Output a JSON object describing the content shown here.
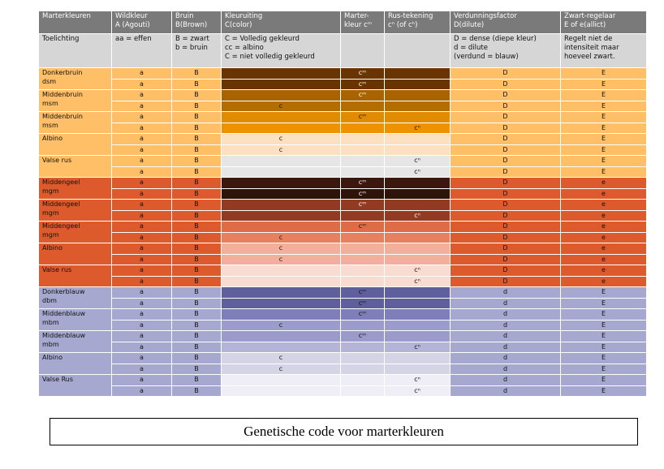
{
  "header": [
    "Marterkleuren",
    "Wildkleur\nA  (Agouti)",
    "Bruin\nB(Brown)",
    "Kleuruiting\nC(color)",
    "Marter-\nkleur cᵐ",
    "Rus-tekening\ncⁿ (of cʰ)",
    "Verdunningsfactor\nD(dilute)",
    "Zwart-regelaar\nE of e(allict)"
  ],
  "explanation": [
    "Toelichting",
    "aa = effen",
    "B = zwart\nb = bruin",
    "C = Volledig gekleurd\ncc = albino\nC = niet volledig gekleurd",
    "",
    "",
    "D = dense (diepe kleur)\nd = dilute\n(verdund = blauw)",
    "Regelt niet de\nintensiteit maar\nhoeveel zwart."
  ],
  "symbols": {
    "a": "a",
    "B": "B",
    "c": "c",
    "cm": "cᵐ",
    "cn": "cⁿ",
    "D": "D",
    "d": "d",
    "E": "E",
    "e": "e"
  },
  "groups": [
    {
      "name": "Donkerbruin\ndsm",
      "row1": [
        "a",
        "B",
        "",
        "cm",
        "",
        "D",
        "E"
      ],
      "row2": [
        "a",
        "B",
        "",
        "cm",
        "",
        "D",
        "E"
      ]
    },
    {
      "name": "Middenbruin\nmsm",
      "row1": [
        "a",
        "B",
        "",
        "cm",
        "",
        "D",
        "E"
      ],
      "row2": [
        "a",
        "B",
        "c",
        "",
        "",
        "D",
        "E"
      ]
    },
    {
      "name": "Middenbruin\nmsm",
      "row1": [
        "a",
        "B",
        "",
        "cm",
        "",
        "D",
        "E"
      ],
      "row2": [
        "a",
        "B",
        "",
        "",
        "cn",
        "D",
        "E"
      ]
    },
    {
      "name": "Albino",
      "row1": [
        "a",
        "B",
        "c",
        "",
        "",
        "D",
        "E"
      ],
      "row2": [
        "a",
        "B",
        "c",
        "",
        "",
        "D",
        "E"
      ]
    },
    {
      "name": "Valse rus",
      "row1": [
        "a",
        "B",
        "",
        "",
        "cn",
        "D",
        "E"
      ],
      "row2": [
        "a",
        "B",
        "",
        "",
        "cn",
        "D",
        "E"
      ]
    },
    {
      "name": "Middengeel\nmgm",
      "row1": [
        "a",
        "B",
        "",
        "cm",
        "",
        "D",
        "e"
      ],
      "row2": [
        "a",
        "B",
        "",
        "cm",
        "",
        "D",
        "e"
      ]
    },
    {
      "name": "Middengeel\nmgm",
      "row1": [
        "a",
        "B",
        "",
        "cm",
        "",
        "D",
        "e"
      ],
      "row2": [
        "a",
        "B",
        "",
        "",
        "cn",
        "D",
        "e"
      ]
    },
    {
      "name": "Middengeel\nmgm",
      "row1": [
        "a",
        "B",
        "",
        "cm",
        "",
        "D",
        "e"
      ],
      "row2": [
        "a",
        "B",
        "c",
        "",
        "",
        "D",
        "e"
      ]
    },
    {
      "name": "Albino",
      "row1": [
        "a",
        "B",
        "c",
        "",
        "",
        "D",
        "e"
      ],
      "row2": [
        "a",
        "B",
        "c",
        "",
        "",
        "D",
        "e"
      ]
    },
    {
      "name": "Valse rus",
      "row1": [
        "a",
        "B",
        "",
        "",
        "cn",
        "D",
        "e"
      ],
      "row2": [
        "a",
        "B",
        "",
        "",
        "cn",
        "D",
        "e"
      ]
    },
    {
      "name": "Donkerblauw\ndbm",
      "row1": [
        "a",
        "B",
        "",
        "cm",
        "",
        "d",
        "E"
      ],
      "row2": [
        "a",
        "B",
        "",
        "cm",
        "",
        "d",
        "E"
      ]
    },
    {
      "name": "Middenblauw\nmbm",
      "row1": [
        "a",
        "B",
        "",
        "cm",
        "",
        "d",
        "E"
      ],
      "row2": [
        "a",
        "B",
        "c",
        "",
        "",
        "d",
        "E"
      ]
    },
    {
      "name": "Middenblauw\nmbm",
      "row1": [
        "a",
        "B",
        "",
        "cm",
        "",
        "d",
        "E"
      ],
      "row2": [
        "a",
        "B",
        "",
        "",
        "cn",
        "d",
        "E"
      ]
    },
    {
      "name": "Albino",
      "row1": [
        "a",
        "B",
        "c",
        "",
        "",
        "d",
        "E"
      ],
      "row2": [
        "a",
        "B",
        "c",
        "",
        "",
        "d",
        "E"
      ]
    },
    {
      "name": "Valse Rus",
      "row1": [
        "a",
        "B",
        "",
        "",
        "cn",
        "d",
        "E"
      ],
      "row2": [
        "a",
        "B",
        "",
        "",
        "cn",
        "d",
        "E"
      ]
    }
  ],
  "colors": {
    "header": "#7a7a7a",
    "explanation": "#d6d6d6",
    "sections": {
      "brown": "#ffbf66",
      "orange": "#dd5a2c",
      "blue": "#a7a8cf"
    },
    "swatches": [
      [
        "#6a3400",
        "#6a3400"
      ],
      [
        "#a96300",
        "#b36d00"
      ],
      [
        "#e08b00",
        "#ee9200"
      ],
      [
        "#fde0c0",
        "#fde0c0"
      ],
      [
        "#e6e6e6",
        "#e6e6e6"
      ],
      [
        "#3b170e",
        "#2e130b"
      ],
      [
        "#933a22",
        "#933a22"
      ],
      [
        "#df6b49",
        "#e6805f"
      ],
      [
        "#f2b09c",
        "#f2b09c"
      ],
      [
        "#f8dcd2",
        "#f8dcd2"
      ],
      [
        "#5f5f9e",
        "#5f5f9e"
      ],
      [
        "#7e7eb8",
        "#9c9ccc"
      ],
      [
        "#9a9acb",
        "#b4b4d8"
      ],
      [
        "#d5d4e6",
        "#d5d4e6"
      ],
      [
        "#efedf5",
        "#efedf5"
      ]
    ]
  },
  "caption": "Genetische code voor marterkleuren"
}
